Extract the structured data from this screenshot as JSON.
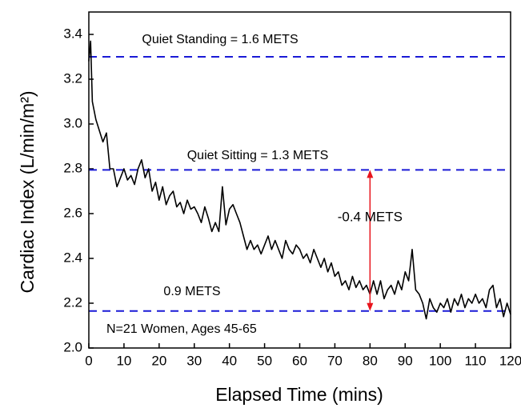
{
  "chart_data": {
    "type": "line",
    "xlabel": "Elapsed Time (mins)",
    "ylabel": "Cardiac Index (L/min/m²)",
    "x": [
      0,
      0.5,
      1,
      2,
      3,
      4,
      5,
      6,
      7,
      8,
      9,
      10,
      11,
      12,
      13,
      14,
      15,
      16,
      17,
      18,
      19,
      20,
      21,
      22,
      23,
      24,
      25,
      26,
      27,
      28,
      29,
      30,
      31,
      32,
      33,
      34,
      35,
      36,
      37,
      38,
      39,
      40,
      41,
      42,
      43,
      44,
      45,
      46,
      47,
      48,
      49,
      50,
      51,
      52,
      53,
      54,
      55,
      56,
      57,
      58,
      59,
      60,
      61,
      62,
      63,
      64,
      65,
      66,
      67,
      68,
      69,
      70,
      71,
      72,
      73,
      74,
      75,
      76,
      77,
      78,
      79,
      80,
      81,
      82,
      83,
      84,
      85,
      86,
      87,
      88,
      89,
      90,
      91,
      92,
      93,
      94,
      95,
      96,
      97,
      98,
      99,
      100,
      101,
      102,
      103,
      104,
      105,
      106,
      107,
      108,
      109,
      110,
      111,
      112,
      113,
      114,
      115,
      116,
      117,
      118,
      119,
      120
    ],
    "values": [
      3.28,
      3.37,
      3.1,
      3.02,
      2.97,
      2.92,
      2.96,
      2.8,
      2.8,
      2.72,
      2.76,
      2.8,
      2.75,
      2.77,
      2.73,
      2.8,
      2.84,
      2.76,
      2.8,
      2.7,
      2.74,
      2.66,
      2.72,
      2.64,
      2.68,
      2.7,
      2.63,
      2.65,
      2.6,
      2.66,
      2.62,
      2.63,
      2.6,
      2.56,
      2.63,
      2.58,
      2.52,
      2.56,
      2.52,
      2.72,
      2.55,
      2.62,
      2.64,
      2.6,
      2.56,
      2.5,
      2.44,
      2.48,
      2.44,
      2.46,
      2.42,
      2.46,
      2.5,
      2.44,
      2.48,
      2.44,
      2.4,
      2.48,
      2.44,
      2.42,
      2.46,
      2.44,
      2.4,
      2.42,
      2.38,
      2.44,
      2.4,
      2.36,
      2.4,
      2.34,
      2.38,
      2.32,
      2.34,
      2.28,
      2.3,
      2.26,
      2.32,
      2.27,
      2.3,
      2.26,
      2.28,
      2.24,
      2.3,
      2.24,
      2.3,
      2.22,
      2.26,
      2.28,
      2.24,
      2.3,
      2.26,
      2.34,
      2.3,
      2.44,
      2.26,
      2.24,
      2.2,
      2.13,
      2.22,
      2.18,
      2.16,
      2.2,
      2.18,
      2.22,
      2.16,
      2.22,
      2.19,
      2.24,
      2.18,
      2.22,
      2.2,
      2.24,
      2.2,
      2.22,
      2.18,
      2.26,
      2.28,
      2.18,
      2.22,
      2.14,
      2.2,
      2.15
    ],
    "color": "#000000",
    "xlim": [
      0,
      120
    ],
    "xticks": [
      0,
      10,
      20,
      30,
      40,
      50,
      60,
      70,
      80,
      90,
      100,
      110,
      120
    ],
    "ylim": [
      2.0,
      3.5
    ],
    "yticks": [
      {
        "value": 2,
        "label": "2.0"
      },
      2.2,
      2.4,
      2.6,
      2.8,
      {
        "value": 3,
        "label": "3.0"
      },
      3.2,
      3.4
    ],
    "reference_lines": [
      3.3,
      2.795,
      2.165
    ],
    "reference_color": "#1a1ad6",
    "annotations": [
      "Quiet Standing = 1.6 METS",
      "Quiet Sitting = 1.3 METS",
      "0.9 METS",
      "N=21 Women, Ages 45-65"
    ],
    "arrow": {
      "x": 80,
      "from": 2.795,
      "to": 2.165,
      "label": "-0.4 METS",
      "color": "#e8141c"
    }
  }
}
